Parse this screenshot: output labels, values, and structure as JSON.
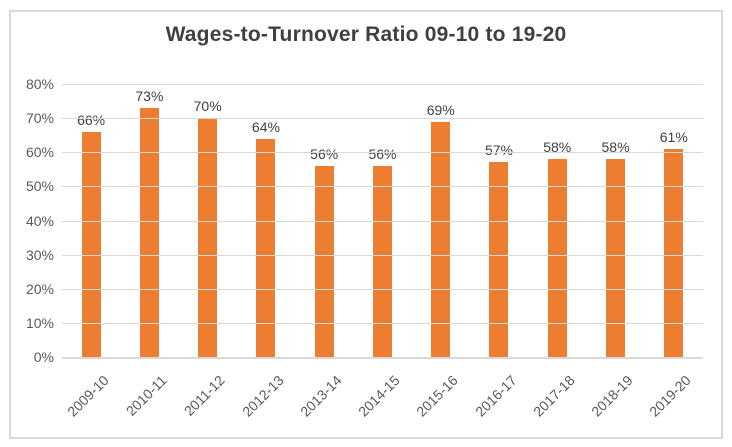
{
  "chart_data": {
    "type": "bar",
    "title": "Wages-to-Turnover Ratio 09-10 to 19-20",
    "categories": [
      "2009-10",
      "2010-11",
      "2011-12",
      "2012-13",
      "2013-14",
      "2014-15",
      "2015-16",
      "2016-17",
      "2017-18",
      "2018-19",
      "2019-20"
    ],
    "values": [
      66,
      73,
      70,
      64,
      56,
      56,
      69,
      57,
      58,
      58,
      61
    ],
    "value_labels": [
      "66%",
      "73%",
      "70%",
      "64%",
      "56%",
      "56%",
      "69%",
      "57%",
      "58%",
      "58%",
      "61%"
    ],
    "series_name": "Wages-to-Turnover Ratio",
    "xlabel": "",
    "ylabel": "",
    "ylim": [
      0,
      80
    ],
    "y_tick_values": [
      0,
      10,
      20,
      30,
      40,
      50,
      60,
      70,
      80
    ],
    "y_tick_labels": [
      "0%",
      "10%",
      "20%",
      "30%",
      "40%",
      "50%",
      "60%",
      "70%",
      "80%"
    ],
    "grid": true,
    "legend_position": "none",
    "x_tick_rotation_deg": -45
  },
  "colors": {
    "bar": "#ED7D31",
    "gridline": "#D9D9D9",
    "chart_border": "#D9D9D9",
    "axis_text": "#595959",
    "title_text": "#404040",
    "data_label_text": "#404040",
    "background": "#FFFFFF"
  }
}
